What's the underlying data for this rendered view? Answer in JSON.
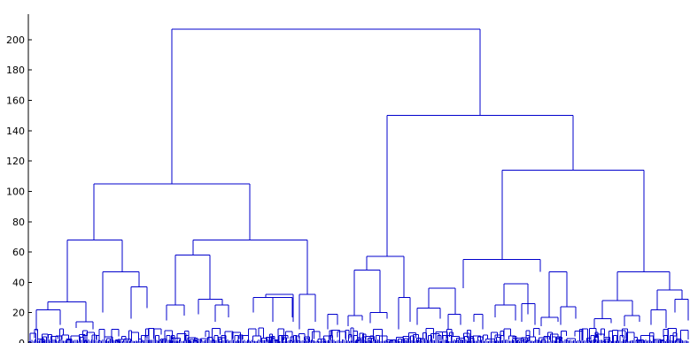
{
  "chart_data": {
    "type": "dendrogram",
    "title": "",
    "xlabel": "",
    "ylabel": "",
    "ylim": [
      0,
      210
    ],
    "yticks": [
      0,
      20,
      40,
      60,
      80,
      100,
      120,
      140,
      160,
      180,
      200
    ],
    "ytick_labels": [
      "0",
      "20",
      "40",
      "60",
      "80",
      "100",
      "120",
      "140",
      "160",
      "180",
      "200"
    ],
    "grid": false,
    "line_color": "#0000cc",
    "axis_color": "#000000",
    "merge_heights": {
      "root": 207,
      "left_cluster": 105,
      "right_cluster": 150,
      "left_left": 68,
      "left_right": 68,
      "right_left": 57,
      "right_right": 114,
      "right_right_left": 55,
      "right_right_right": 47
    }
  }
}
